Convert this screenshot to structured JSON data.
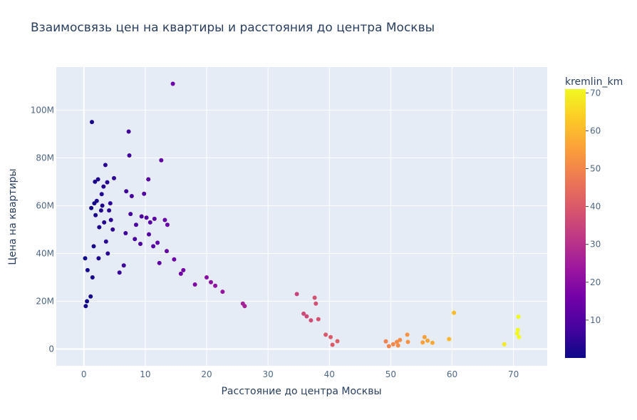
{
  "chart_data": {
    "type": "scatter",
    "title": "Взаимосвязь цен на квартиры и расстояния до центра Москвы",
    "xlabel": "Расстояние до центра Москвы",
    "ylabel": "Цена на квартиры",
    "xlim": [
      -4.5,
      75.5
    ],
    "ylim": [
      -7000000,
      118000000
    ],
    "x_ticks": [
      {
        "value": 0,
        "label": "0"
      },
      {
        "value": 10,
        "label": "10"
      },
      {
        "value": 20,
        "label": "20"
      },
      {
        "value": 30,
        "label": "30"
      },
      {
        "value": 40,
        "label": "40"
      },
      {
        "value": 50,
        "label": "50"
      },
      {
        "value": 60,
        "label": "60"
      },
      {
        "value": 70,
        "label": "70"
      }
    ],
    "y_ticks": [
      {
        "value": 0,
        "label": "0"
      },
      {
        "value": 20000000,
        "label": "20M"
      },
      {
        "value": 40000000,
        "label": "40M"
      },
      {
        "value": 60000000,
        "label": "60M"
      },
      {
        "value": 80000000,
        "label": "80M"
      },
      {
        "value": 100000000,
        "label": "100M"
      }
    ],
    "grid": true,
    "colorbar": {
      "title": "kremlin_km",
      "range": [
        0,
        71
      ],
      "ticks": [
        {
          "value": 10,
          "label": "10"
        },
        {
          "value": 20,
          "label": "20"
        },
        {
          "value": 30,
          "label": "30"
        },
        {
          "value": 40,
          "label": "40"
        },
        {
          "value": 50,
          "label": "50"
        },
        {
          "value": 60,
          "label": "60"
        },
        {
          "value": 70,
          "label": "70"
        }
      ],
      "colorscale": [
        "#0d0887",
        "#46039f",
        "#7201a8",
        "#9c179e",
        "#bd3786",
        "#d8576b",
        "#ed7953",
        "#fb9f3a",
        "#fdca26",
        "#f0f921"
      ]
    },
    "colors": {
      "plot_bg": "#e5ecf6",
      "grid": "#ffffff",
      "text": "#2a3f5f",
      "tick_text": "#506784"
    },
    "points": [
      [
        14.5,
        111000000
      ],
      [
        1.3,
        95000000
      ],
      [
        7.3,
        91000000
      ],
      [
        7.4,
        81000000
      ],
      [
        12.6,
        79000000
      ],
      [
        3.5,
        77000000
      ],
      [
        2.3,
        71000000
      ],
      [
        4.9,
        71500000
      ],
      [
        10.5,
        71000000
      ],
      [
        1.8,
        70000000
      ],
      [
        3.8,
        69800000
      ],
      [
        3.2,
        68000000
      ],
      [
        6.9,
        66000000
      ],
      [
        9.8,
        65000000
      ],
      [
        2.9,
        64800000
      ],
      [
        7.8,
        64000000
      ],
      [
        2.1,
        62000000
      ],
      [
        4.3,
        61000000
      ],
      [
        1.7,
        61000000
      ],
      [
        1.2,
        59000000
      ],
      [
        3.0,
        60000000
      ],
      [
        2.8,
        58000000
      ],
      [
        4.1,
        58000000
      ],
      [
        7.6,
        56500000
      ],
      [
        1.9,
        56000000
      ],
      [
        9.4,
        55500000
      ],
      [
        10.2,
        55000000
      ],
      [
        11.5,
        54500000
      ],
      [
        13.2,
        54000000
      ],
      [
        4.4,
        54000000
      ],
      [
        3.3,
        53000000
      ],
      [
        10.8,
        53000000
      ],
      [
        13.6,
        52000000
      ],
      [
        8.5,
        52000000
      ],
      [
        2.5,
        51000000
      ],
      [
        4.7,
        50000000
      ],
      [
        6.8,
        48500000
      ],
      [
        10.6,
        48000000
      ],
      [
        8.3,
        46000000
      ],
      [
        12.0,
        44500000
      ],
      [
        3.6,
        45000000
      ],
      [
        9.2,
        44000000
      ],
      [
        11.3,
        43000000
      ],
      [
        1.6,
        43000000
      ],
      [
        13.5,
        41000000
      ],
      [
        14.7,
        37500000
      ],
      [
        16.2,
        33000000
      ],
      [
        12.3,
        36000000
      ],
      [
        15.8,
        31500000
      ],
      [
        20.0,
        30000000
      ],
      [
        20.7,
        28000000
      ],
      [
        18.1,
        27000000
      ],
      [
        21.4,
        26500000
      ],
      [
        22.6,
        24000000
      ],
      [
        25.9,
        19000000
      ],
      [
        26.2,
        18000000
      ],
      [
        34.7,
        23000000
      ],
      [
        37.6,
        21500000
      ],
      [
        37.8,
        19000000
      ],
      [
        35.8,
        14800000
      ],
      [
        36.3,
        13700000
      ],
      [
        38.2,
        12500000
      ],
      [
        37.0,
        12000000
      ],
      [
        0.3,
        18000000
      ],
      [
        0.5,
        20000000
      ],
      [
        1.1,
        22000000
      ],
      [
        3.9,
        40000000
      ],
      [
        2.4,
        38000000
      ],
      [
        5.8,
        32000000
      ],
      [
        6.5,
        35000000
      ],
      [
        0.2,
        38000000
      ],
      [
        0.6,
        33000000
      ],
      [
        1.4,
        30000000
      ],
      [
        60.3,
        15200000
      ],
      [
        70.8,
        13500000
      ],
      [
        70.7,
        8000000
      ],
      [
        70.6,
        6500000
      ],
      [
        70.9,
        5000000
      ],
      [
        68.5,
        2000000
      ],
      [
        52.7,
        6000000
      ],
      [
        55.5,
        5000000
      ],
      [
        59.5,
        4200000
      ],
      [
        56.0,
        3500000
      ],
      [
        56.8,
        2600000
      ],
      [
        55.2,
        2800000
      ],
      [
        51.5,
        3800000
      ],
      [
        51.0,
        3000000
      ],
      [
        50.4,
        2000000
      ],
      [
        49.7,
        1200000
      ],
      [
        51.2,
        1500000
      ],
      [
        49.2,
        3200000
      ],
      [
        52.8,
        3000000
      ],
      [
        40.2,
        5000000
      ],
      [
        41.3,
        3300000
      ],
      [
        40.5,
        1800000
      ],
      [
        39.4,
        6000000
      ]
    ]
  }
}
